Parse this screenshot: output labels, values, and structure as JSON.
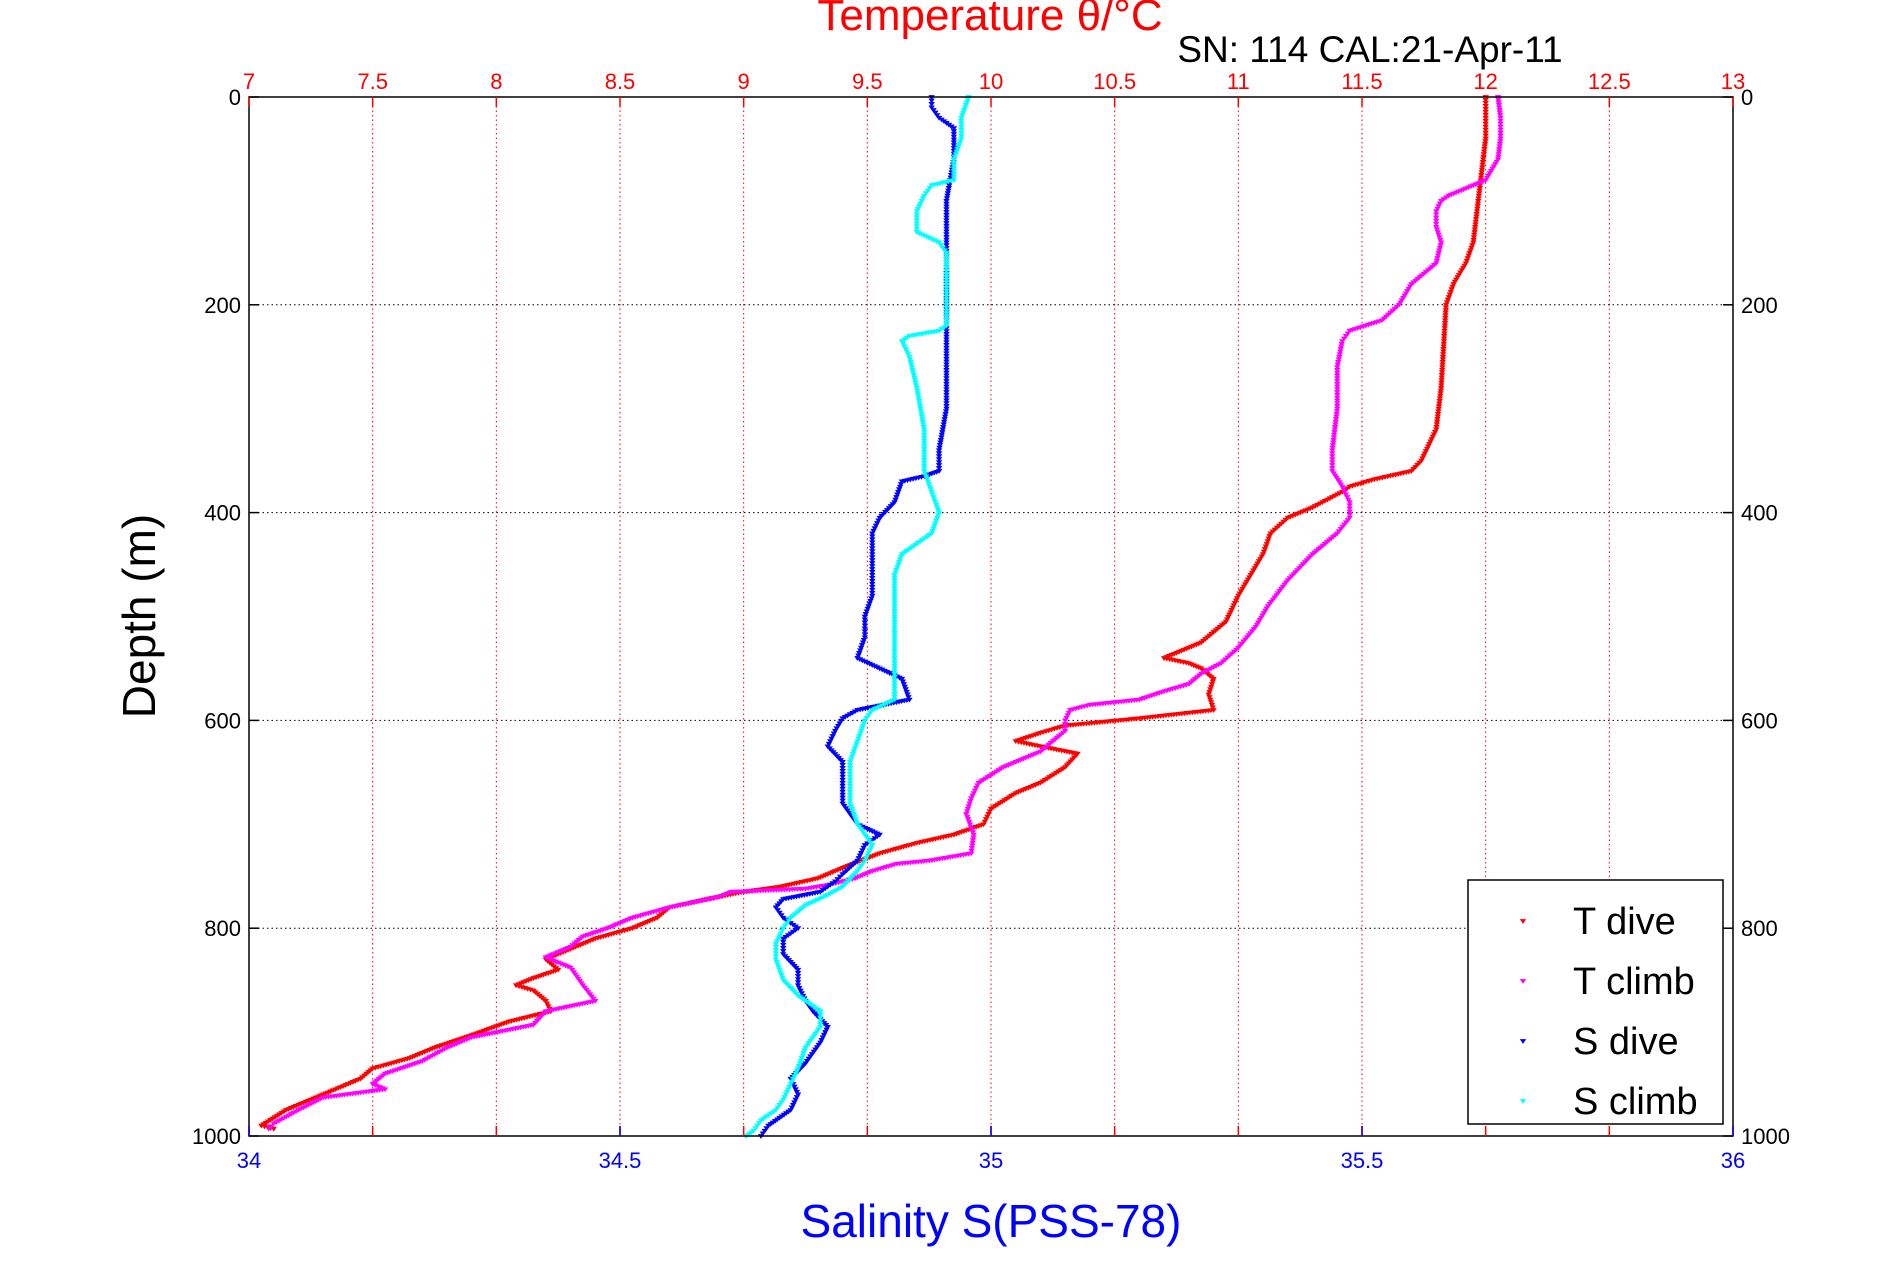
{
  "chart_data": {
    "type": "scatter",
    "title": "SN: 114  CAL:21-Apr-11",
    "top_axis_label": "Temperature θ/°C",
    "bottom_axis_label": "Salinity S(PSS-78)",
    "ylabel": "Depth (m)",
    "top_axis": {
      "range": [
        7,
        13
      ],
      "ticks": [
        "7",
        "7.5",
        "8",
        "8.5",
        "9",
        "9.5",
        "10",
        "10.5",
        "11",
        "11.5",
        "12",
        "12.5",
        "13"
      ],
      "color": "#ff0000"
    },
    "bottom_axis": {
      "range": [
        34,
        36
      ],
      "ticks": [
        "34",
        "34.5",
        "35",
        "35.5",
        "36"
      ],
      "color": "#0000ff"
    },
    "y_axis": {
      "range": [
        0,
        1000
      ],
      "reversed": true,
      "ticks": [
        "0",
        "200",
        "400",
        "600",
        "800",
        "1000"
      ]
    },
    "grid": true,
    "legend_position": "bottom-right",
    "series": [
      {
        "name": "T dive",
        "axis": "temperature",
        "color": "#ff0000",
        "points": [
          [
            12.0,
            0
          ],
          [
            12.0,
            20
          ],
          [
            12.0,
            40
          ],
          [
            11.99,
            60
          ],
          [
            11.98,
            80
          ],
          [
            11.97,
            100
          ],
          [
            11.96,
            120
          ],
          [
            11.95,
            140
          ],
          [
            11.92,
            160
          ],
          [
            11.87,
            180
          ],
          [
            11.84,
            200
          ],
          [
            11.83,
            240
          ],
          [
            11.82,
            280
          ],
          [
            11.8,
            320
          ],
          [
            11.74,
            350
          ],
          [
            11.7,
            360
          ],
          [
            11.55,
            368
          ],
          [
            11.45,
            375
          ],
          [
            11.42,
            380
          ],
          [
            11.38,
            385
          ],
          [
            11.3,
            395
          ],
          [
            11.2,
            405
          ],
          [
            11.13,
            420
          ],
          [
            11.1,
            440
          ],
          [
            11.05,
            460
          ],
          [
            11.0,
            480
          ],
          [
            10.95,
            505
          ],
          [
            10.85,
            525
          ],
          [
            10.75,
            535
          ],
          [
            10.7,
            540
          ],
          [
            10.8,
            545
          ],
          [
            10.85,
            550
          ],
          [
            10.9,
            560
          ],
          [
            10.88,
            575
          ],
          [
            10.9,
            590
          ],
          [
            10.6,
            598
          ],
          [
            10.3,
            605
          ],
          [
            10.2,
            612
          ],
          [
            10.1,
            620
          ],
          [
            10.2,
            625
          ],
          [
            10.35,
            632
          ],
          [
            10.3,
            645
          ],
          [
            10.2,
            660
          ],
          [
            10.1,
            670
          ],
          [
            10.0,
            685
          ],
          [
            9.97,
            700
          ],
          [
            9.85,
            710
          ],
          [
            9.7,
            718
          ],
          [
            9.55,
            728
          ],
          [
            9.42,
            740
          ],
          [
            9.3,
            752
          ],
          [
            9.15,
            760
          ],
          [
            9.0,
            765
          ],
          [
            8.85,
            772
          ],
          [
            8.7,
            780
          ],
          [
            8.65,
            790
          ],
          [
            8.55,
            800
          ],
          [
            8.4,
            810
          ],
          [
            8.3,
            820
          ],
          [
            8.2,
            830
          ],
          [
            8.25,
            840
          ],
          [
            8.15,
            848
          ],
          [
            8.08,
            855
          ],
          [
            8.15,
            860
          ],
          [
            8.2,
            870
          ],
          [
            8.22,
            880
          ],
          [
            8.05,
            890
          ],
          [
            7.9,
            903
          ],
          [
            7.75,
            915
          ],
          [
            7.65,
            925
          ],
          [
            7.5,
            935
          ],
          [
            7.45,
            945
          ],
          [
            7.35,
            955
          ],
          [
            7.25,
            965
          ],
          [
            7.15,
            975
          ],
          [
            7.05,
            990
          ],
          [
            7.1,
            993
          ]
        ]
      },
      {
        "name": "T climb",
        "axis": "temperature",
        "color": "#ff00ff",
        "points": [
          [
            12.05,
            0
          ],
          [
            12.06,
            20
          ],
          [
            12.06,
            40
          ],
          [
            12.05,
            60
          ],
          [
            12.0,
            80
          ],
          [
            11.85,
            95
          ],
          [
            11.82,
            100
          ],
          [
            11.8,
            110
          ],
          [
            11.8,
            125
          ],
          [
            11.82,
            140
          ],
          [
            11.8,
            160
          ],
          [
            11.7,
            180
          ],
          [
            11.65,
            200
          ],
          [
            11.58,
            215
          ],
          [
            11.45,
            225
          ],
          [
            11.42,
            235
          ],
          [
            11.4,
            260
          ],
          [
            11.4,
            300
          ],
          [
            11.38,
            340
          ],
          [
            11.38,
            360
          ],
          [
            11.42,
            375
          ],
          [
            11.45,
            390
          ],
          [
            11.45,
            405
          ],
          [
            11.4,
            420
          ],
          [
            11.3,
            440
          ],
          [
            11.2,
            465
          ],
          [
            11.12,
            490
          ],
          [
            11.07,
            510
          ],
          [
            11.0,
            530
          ],
          [
            10.93,
            545
          ],
          [
            10.85,
            555
          ],
          [
            10.8,
            565
          ],
          [
            10.7,
            572
          ],
          [
            10.6,
            580
          ],
          [
            10.4,
            585
          ],
          [
            10.32,
            590
          ],
          [
            10.3,
            600
          ],
          [
            10.3,
            610
          ],
          [
            10.25,
            620
          ],
          [
            10.2,
            630
          ],
          [
            10.05,
            645
          ],
          [
            9.95,
            660
          ],
          [
            9.92,
            675
          ],
          [
            9.9,
            690
          ],
          [
            9.93,
            710
          ],
          [
            9.92,
            728
          ],
          [
            9.75,
            735
          ],
          [
            9.62,
            738
          ],
          [
            9.52,
            745
          ],
          [
            9.45,
            752
          ],
          [
            9.35,
            758
          ],
          [
            9.25,
            762
          ],
          [
            8.95,
            765
          ],
          [
            8.9,
            770
          ],
          [
            8.8,
            775
          ],
          [
            8.7,
            780
          ],
          [
            8.55,
            790
          ],
          [
            8.45,
            800
          ],
          [
            8.35,
            808
          ],
          [
            8.3,
            818
          ],
          [
            8.2,
            828
          ],
          [
            8.3,
            838
          ],
          [
            8.35,
            855
          ],
          [
            8.4,
            870
          ],
          [
            8.2,
            880
          ],
          [
            8.15,
            893
          ],
          [
            7.9,
            905
          ],
          [
            7.8,
            915
          ],
          [
            7.7,
            928
          ],
          [
            7.55,
            940
          ],
          [
            7.5,
            950
          ],
          [
            7.55,
            955
          ],
          [
            7.3,
            963
          ],
          [
            7.2,
            975
          ],
          [
            7.1,
            988
          ],
          [
            7.08,
            993
          ]
        ]
      },
      {
        "name": "S dive",
        "axis": "salinity",
        "color": "#0000ff",
        "points": [
          [
            34.92,
            0
          ],
          [
            34.92,
            10
          ],
          [
            34.93,
            20
          ],
          [
            34.95,
            30
          ],
          [
            34.95,
            60
          ],
          [
            34.94,
            100
          ],
          [
            34.94,
            140
          ],
          [
            34.94,
            180
          ],
          [
            34.94,
            220
          ],
          [
            34.94,
            260
          ],
          [
            34.94,
            300
          ],
          [
            34.93,
            340
          ],
          [
            34.93,
            360
          ],
          [
            34.91,
            365
          ],
          [
            34.88,
            370
          ],
          [
            34.87,
            390
          ],
          [
            34.85,
            405
          ],
          [
            34.84,
            420
          ],
          [
            34.84,
            440
          ],
          [
            34.84,
            460
          ],
          [
            34.84,
            480
          ],
          [
            34.83,
            500
          ],
          [
            34.83,
            520
          ],
          [
            34.82,
            540
          ],
          [
            34.85,
            550
          ],
          [
            34.88,
            560
          ],
          [
            34.89,
            580
          ],
          [
            34.82,
            590
          ],
          [
            34.8,
            598
          ],
          [
            34.79,
            610
          ],
          [
            34.78,
            625
          ],
          [
            34.8,
            640
          ],
          [
            34.8,
            660
          ],
          [
            34.8,
            680
          ],
          [
            34.82,
            700
          ],
          [
            34.85,
            710
          ],
          [
            34.83,
            720
          ],
          [
            34.82,
            735
          ],
          [
            34.8,
            748
          ],
          [
            34.79,
            755
          ],
          [
            34.78,
            760
          ],
          [
            34.77,
            765
          ],
          [
            34.72,
            772
          ],
          [
            34.71,
            780
          ],
          [
            34.72,
            790
          ],
          [
            34.74,
            800
          ],
          [
            34.72,
            810
          ],
          [
            34.72,
            825
          ],
          [
            34.74,
            840
          ],
          [
            34.74,
            855
          ],
          [
            34.75,
            870
          ],
          [
            34.76,
            880
          ],
          [
            34.78,
            895
          ],
          [
            34.77,
            910
          ],
          [
            34.75,
            930
          ],
          [
            34.73,
            945
          ],
          [
            34.74,
            960
          ],
          [
            34.73,
            975
          ],
          [
            34.7,
            990
          ],
          [
            34.69,
            1000
          ]
        ]
      },
      {
        "name": "S climb",
        "axis": "salinity",
        "color": "#00ffff",
        "points": [
          [
            34.97,
            0
          ],
          [
            34.96,
            20
          ],
          [
            34.96,
            40
          ],
          [
            34.95,
            60
          ],
          [
            34.95,
            80
          ],
          [
            34.92,
            85
          ],
          [
            34.91,
            95
          ],
          [
            34.9,
            110
          ],
          [
            34.9,
            130
          ],
          [
            34.93,
            140
          ],
          [
            34.94,
            150
          ],
          [
            34.94,
            170
          ],
          [
            34.94,
            200
          ],
          [
            34.94,
            220
          ],
          [
            34.93,
            225
          ],
          [
            34.89,
            230
          ],
          [
            34.88,
            235
          ],
          [
            34.89,
            250
          ],
          [
            34.9,
            280
          ],
          [
            34.91,
            320
          ],
          [
            34.91,
            360
          ],
          [
            34.92,
            380
          ],
          [
            34.93,
            400
          ],
          [
            34.92,
            420
          ],
          [
            34.88,
            440
          ],
          [
            34.87,
            460
          ],
          [
            34.87,
            500
          ],
          [
            34.87,
            550
          ],
          [
            34.87,
            580
          ],
          [
            34.84,
            590
          ],
          [
            34.83,
            600
          ],
          [
            34.82,
            620
          ],
          [
            34.81,
            640
          ],
          [
            34.81,
            660
          ],
          [
            34.81,
            680
          ],
          [
            34.82,
            700
          ],
          [
            34.84,
            720
          ],
          [
            34.83,
            735
          ],
          [
            34.82,
            745
          ],
          [
            34.8,
            760
          ],
          [
            34.78,
            768
          ],
          [
            34.75,
            778
          ],
          [
            34.73,
            790
          ],
          [
            34.72,
            800
          ],
          [
            34.71,
            815
          ],
          [
            34.71,
            830
          ],
          [
            34.72,
            850
          ],
          [
            34.74,
            865
          ],
          [
            34.77,
            880
          ],
          [
            34.77,
            895
          ],
          [
            34.75,
            915
          ],
          [
            34.74,
            935
          ],
          [
            34.73,
            950
          ],
          [
            34.72,
            965
          ],
          [
            34.71,
            975
          ],
          [
            34.69,
            985
          ],
          [
            34.68,
            995
          ],
          [
            34.67,
            1000
          ]
        ]
      }
    ]
  }
}
